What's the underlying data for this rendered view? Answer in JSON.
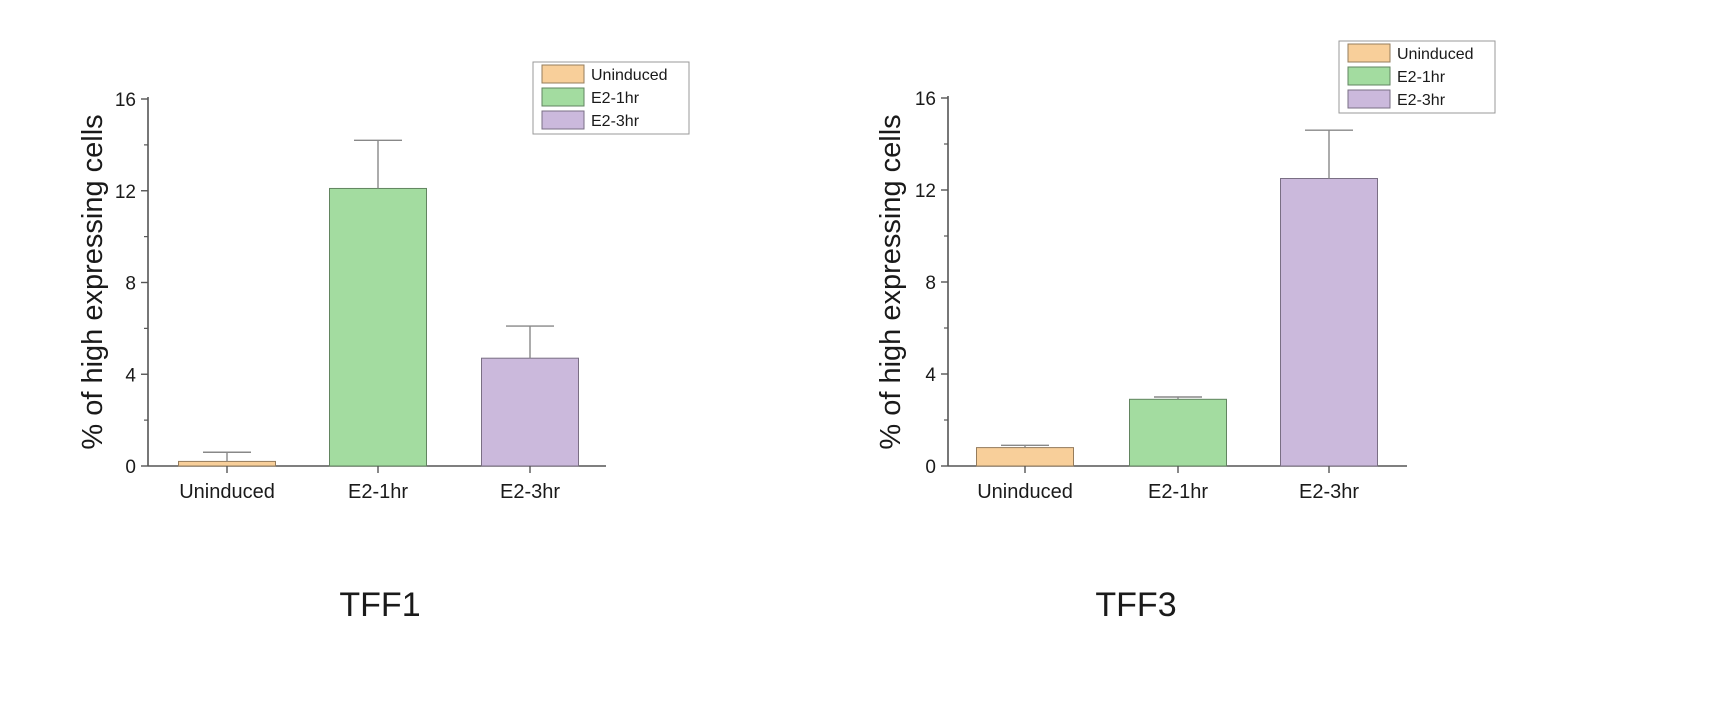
{
  "chart_data": [
    {
      "type": "bar",
      "title": "TFF1",
      "ylabel": "% of high expressing cells",
      "xlabel": "",
      "categories": [
        "Uninduced",
        "E2-1hr",
        "E2-3hr"
      ],
      "values": [
        0.2,
        12.1,
        4.7
      ],
      "error": [
        0.4,
        2.1,
        1.4
      ],
      "ylim": [
        0,
        16
      ],
      "yticks": [
        0,
        4,
        8,
        12,
        16
      ],
      "legend": [
        "Uninduced",
        "E2-1hr",
        "E2-3hr"
      ],
      "legend_position": "top-right",
      "colors": [
        "#f8cf9a",
        "#a3dca0",
        "#cbb9dc"
      ],
      "grid": false
    },
    {
      "type": "bar",
      "title": "TFF3",
      "ylabel": "% of high expressing cells",
      "xlabel": "",
      "categories": [
        "Uninduced",
        "E2-1hr",
        "E2-3hr"
      ],
      "values": [
        0.8,
        2.9,
        12.5
      ],
      "error": [
        0.1,
        0.1,
        2.1
      ],
      "ylim": [
        0,
        16
      ],
      "yticks": [
        0,
        4,
        8,
        12,
        16
      ],
      "legend": [
        "Uninduced",
        "E2-1hr",
        "E2-3hr"
      ],
      "legend_position": "top-right",
      "colors": [
        "#f8cf9a",
        "#a3dca0",
        "#cbb9dc"
      ],
      "grid": false
    }
  ]
}
